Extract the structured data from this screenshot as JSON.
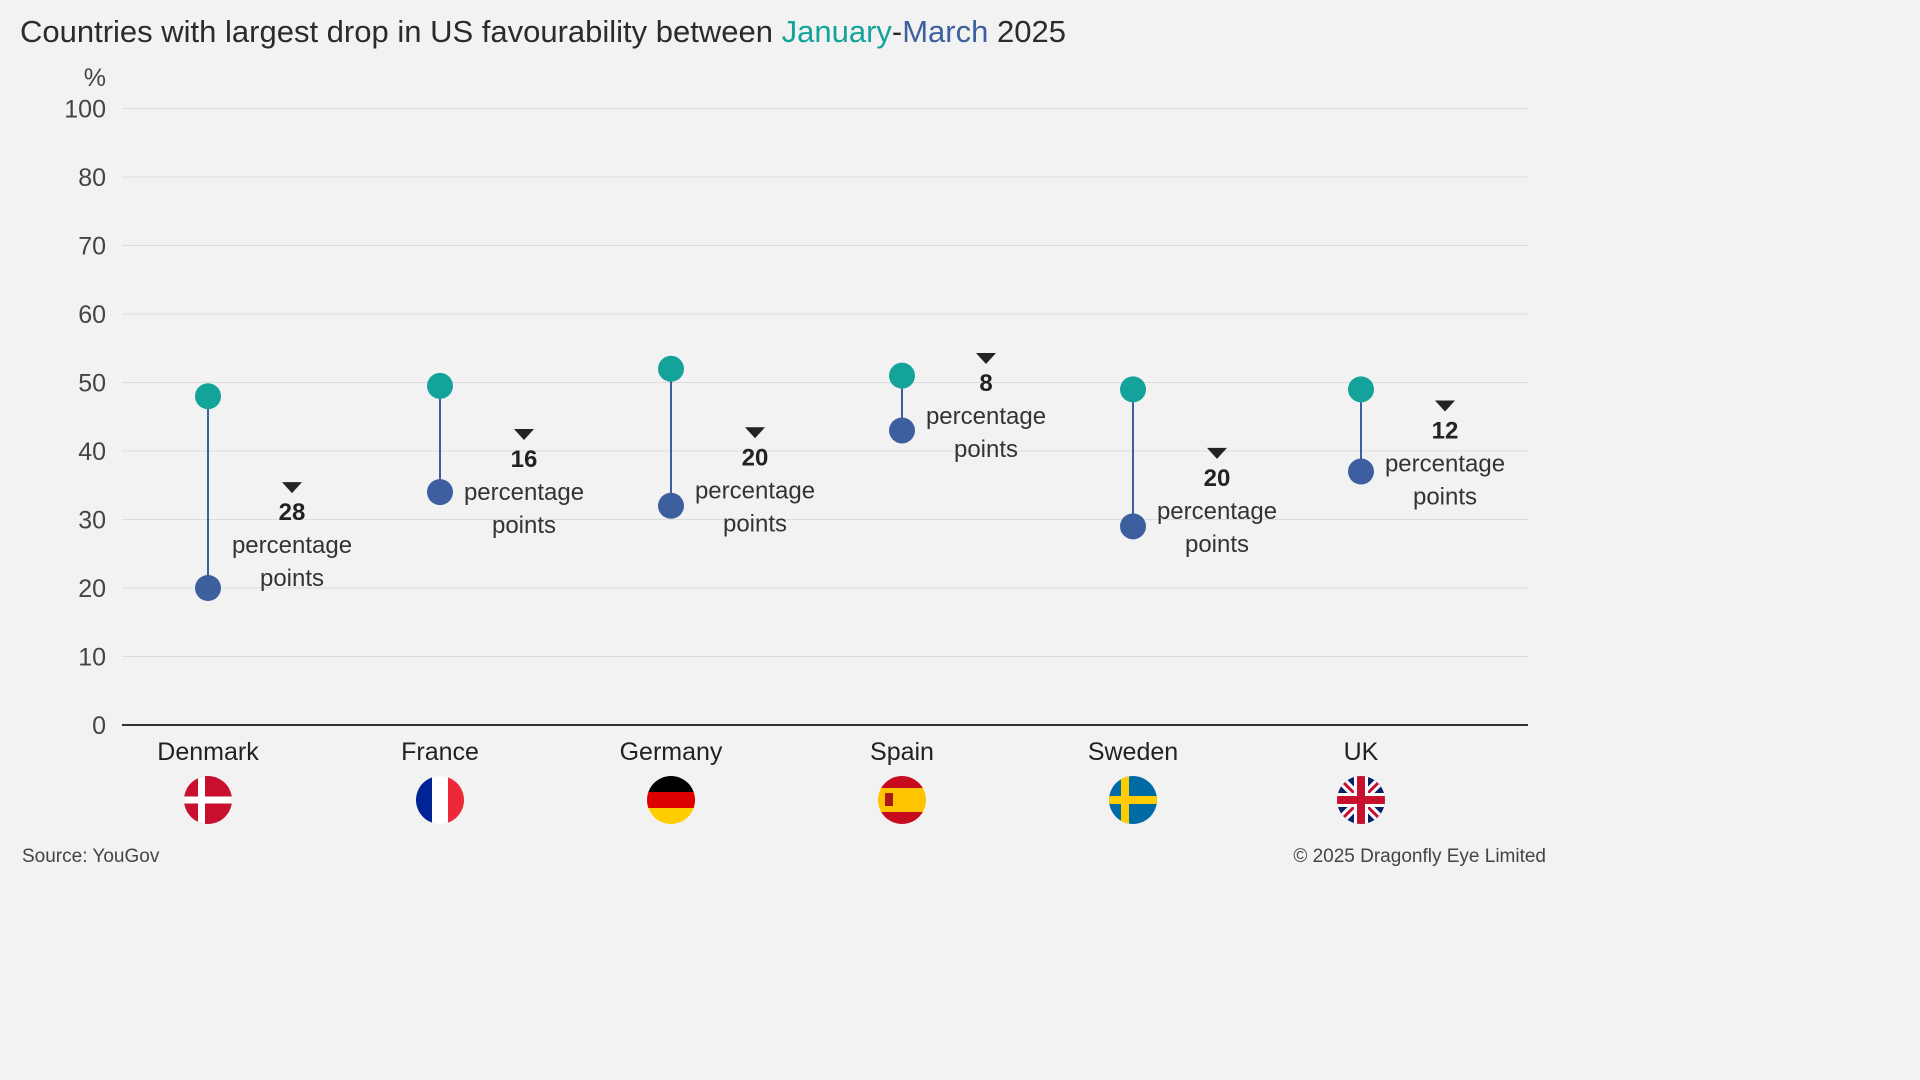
{
  "title": {
    "prefix": "Countries with largest drop in US favourability between ",
    "jan": "January",
    "dash": "-",
    "mar": "March",
    "suffix": " 2025"
  },
  "colors": {
    "january": "#14a39a",
    "march": "#3e5f9f",
    "connector": "#3e5f9f"
  },
  "chart_data": {
    "type": "dumbbell",
    "ylabel": "%",
    "ylim": [
      0,
      100
    ],
    "yticks": [
      0,
      10,
      20,
      30,
      40,
      50,
      60,
      70,
      80,
      100
    ],
    "grid": true,
    "categories": [
      "Denmark",
      "France",
      "Germany",
      "Spain",
      "Sweden",
      "UK"
    ],
    "flag_icons": [
      "denmark-flag-icon",
      "france-flag-icon",
      "germany-flag-icon",
      "spain-flag-icon",
      "sweden-flag-icon",
      "uk-flag-icon"
    ],
    "series": [
      {
        "name": "January",
        "values": [
          48,
          49.5,
          52,
          51,
          49,
          49
        ]
      },
      {
        "name": "March",
        "values": [
          20,
          34,
          32,
          43,
          29,
          37
        ]
      }
    ],
    "annotations": [
      {
        "value": "28",
        "text": "percentage",
        "text2": "points"
      },
      {
        "value": "16",
        "text": "percentage",
        "text2": "points"
      },
      {
        "value": "20",
        "text": "percentage",
        "text2": "points"
      },
      {
        "value": "8",
        "text": "percentage",
        "text2": "points"
      },
      {
        "value": "20",
        "text": "percentage",
        "text2": "points"
      },
      {
        "value": "12",
        "text": "percentage",
        "text2": "points"
      }
    ]
  },
  "footer": {
    "source": "Source: YouGov",
    "copyright": "© 2025 Dragonfly Eye Limited"
  }
}
